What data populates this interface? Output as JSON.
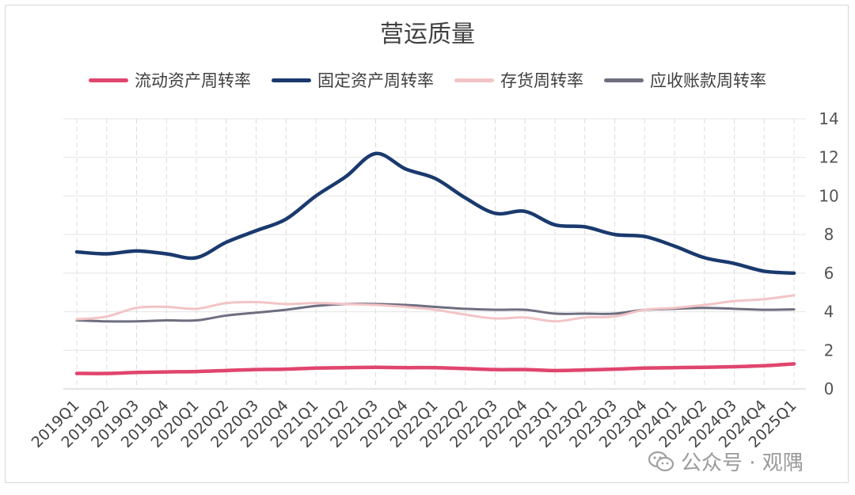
{
  "chart_data": {
    "type": "line",
    "title": "营运质量",
    "categories": [
      "2019Q1",
      "2019Q2",
      "2019Q3",
      "2019Q4",
      "2020Q1",
      "2020Q2",
      "2020Q3",
      "2020Q4",
      "2021Q1",
      "2021Q2",
      "2021Q3",
      "2021Q4",
      "2022Q1",
      "2022Q2",
      "2022Q3",
      "2022Q4",
      "2023Q1",
      "2023Q2",
      "2023Q3",
      "2023Q4",
      "2024Q1",
      "2024Q2",
      "2024Q3",
      "2024Q4",
      "2025Q1"
    ],
    "ylim": [
      0,
      14
    ],
    "yticks": [
      0,
      2,
      4,
      6,
      8,
      10,
      12,
      14
    ],
    "y_axis_position": "right",
    "grid": true,
    "legend_position": "top",
    "series": [
      {
        "name": "流动资产周转率",
        "color": "#e0456e",
        "values": [
          0.8,
          0.8,
          0.85,
          0.88,
          0.9,
          0.95,
          1.0,
          1.02,
          1.08,
          1.1,
          1.12,
          1.1,
          1.1,
          1.05,
          1.0,
          1.0,
          0.95,
          0.98,
          1.02,
          1.08,
          1.1,
          1.12,
          1.15,
          1.2,
          1.3
        ]
      },
      {
        "name": "固定资产周转率",
        "color": "#1a3a6e",
        "values": [
          7.1,
          7.0,
          7.15,
          7.0,
          6.8,
          7.6,
          8.2,
          8.8,
          10.0,
          11.0,
          12.2,
          11.4,
          10.9,
          9.9,
          9.1,
          9.2,
          8.5,
          8.4,
          8.0,
          7.9,
          7.4,
          6.8,
          6.5,
          6.1,
          6.0
        ]
      },
      {
        "name": "存货周转率",
        "color": "#f2c4c6",
        "values": [
          3.6,
          3.75,
          4.2,
          4.25,
          4.15,
          4.45,
          4.5,
          4.4,
          4.45,
          4.4,
          4.35,
          4.25,
          4.1,
          3.85,
          3.65,
          3.7,
          3.5,
          3.7,
          3.75,
          4.1,
          4.2,
          4.35,
          4.55,
          4.65,
          4.85
        ]
      },
      {
        "name": "应收账款周转率",
        "color": "#6e6e80",
        "values": [
          3.55,
          3.5,
          3.5,
          3.55,
          3.55,
          3.8,
          3.95,
          4.1,
          4.3,
          4.4,
          4.4,
          4.35,
          4.25,
          4.15,
          4.1,
          4.1,
          3.9,
          3.9,
          3.9,
          4.1,
          4.15,
          4.2,
          4.15,
          4.1,
          4.12
        ]
      }
    ]
  },
  "watermark": {
    "text": "公众号 · 观隅",
    "icon": "wechat-icon"
  }
}
